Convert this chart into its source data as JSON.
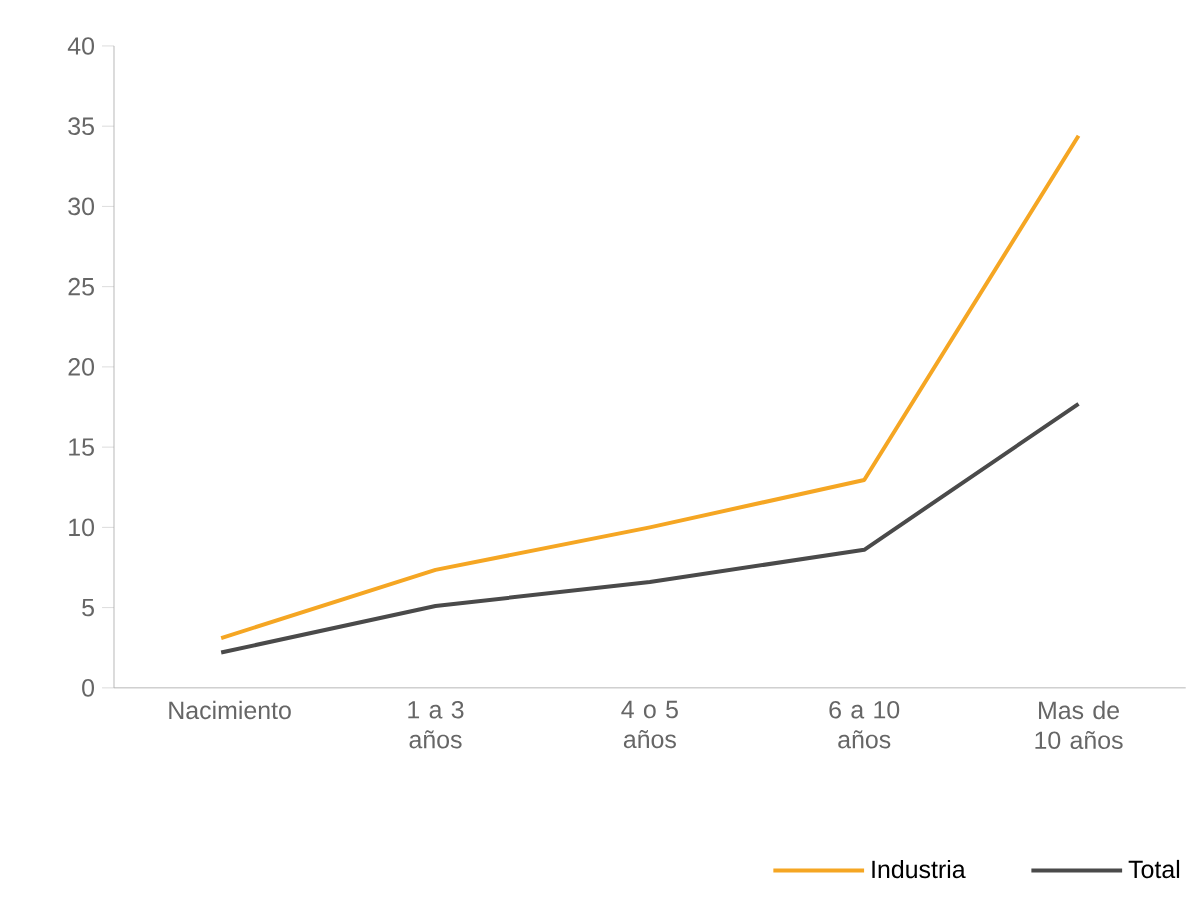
{
  "chart_data": {
    "type": "line",
    "categories": [
      "Nacimiento",
      "1 a 3 años",
      "4 o 5 años",
      "6 a 10 años",
      "Mas de 10 años"
    ],
    "series": [
      {
        "name": "Industria",
        "color": "#f5a623",
        "values": [
          3.1,
          7.35,
          10.0,
          12.95,
          34.4
        ]
      },
      {
        "name": "Total",
        "color": "#4a4a4a",
        "values": [
          2.2,
          5.1,
          6.6,
          8.6,
          17.7
        ]
      }
    ],
    "ylim": [
      0,
      40
    ],
    "yticks": [
      0,
      5,
      10,
      15,
      20,
      25,
      30,
      35,
      40
    ],
    "legend": "bottom right",
    "marker": "none",
    "line_style": "solid"
  }
}
